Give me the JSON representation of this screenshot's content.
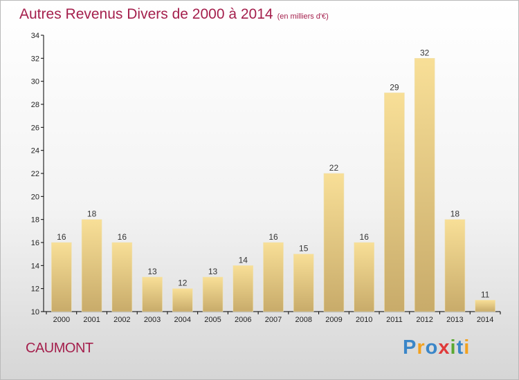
{
  "title": "Autres Revenus Divers de 2000 à 2014",
  "unit": "(en milliers d'€)",
  "place": "CAUMONT",
  "logo": {
    "letters": [
      "P",
      "r",
      "o",
      "x",
      "i",
      "t",
      "i"
    ],
    "colors": [
      "#3a86c8",
      "#f2a11e",
      "#3a86c8",
      "#e03a3a",
      "#5aa832",
      "#3a86c8",
      "#f2a11e"
    ]
  },
  "chart_data": {
    "type": "bar",
    "title": "Autres Revenus Divers de 2000 à 2014",
    "xlabel": "",
    "ylabel": "",
    "categories": [
      "2000",
      "2001",
      "2002",
      "2003",
      "2004",
      "2005",
      "2006",
      "2007",
      "2008",
      "2009",
      "2010",
      "2011",
      "2012",
      "2013",
      "2014"
    ],
    "values": [
      16,
      18,
      16,
      13,
      12,
      13,
      14,
      16,
      15,
      22,
      16,
      29,
      32,
      18,
      11
    ],
    "ylim": [
      10,
      34
    ],
    "yticks": [
      10,
      12,
      14,
      16,
      18,
      20,
      22,
      24,
      26,
      28,
      30,
      32,
      34
    ],
    "grid": false,
    "bar_color": "#e6c47f",
    "axis_color": "#000000"
  }
}
